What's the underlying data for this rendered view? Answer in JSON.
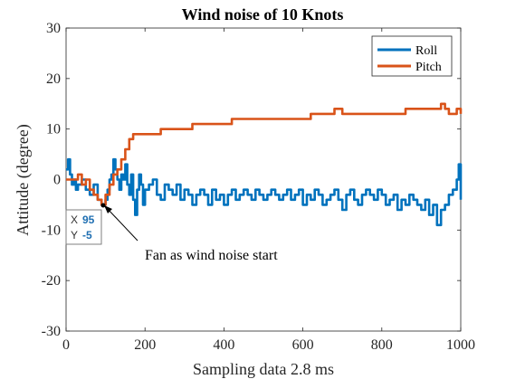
{
  "chart_data": {
    "type": "line",
    "title": "Wind noise of 10 Knots",
    "xlabel": "Sampling data 2.8 ms",
    "ylabel": "Attitude (degree)",
    "xlim": [
      0,
      1000
    ],
    "ylim": [
      -30,
      30
    ],
    "xticks": [
      0,
      200,
      400,
      600,
      800,
      1000
    ],
    "yticks": [
      -30,
      -20,
      -10,
      0,
      10,
      20,
      30
    ],
    "xtick_labels": [
      "0",
      "200",
      "400",
      "600",
      "800",
      "1000"
    ],
    "ytick_labels": [
      "-30",
      "-20",
      "-10",
      "0",
      "10",
      "20",
      "30"
    ],
    "grid": false,
    "legend": "top-right",
    "series": [
      {
        "name": "Roll",
        "color": "#0072BD",
        "x": [
          0,
          5,
          10,
          15,
          20,
          25,
          30,
          40,
          50,
          60,
          70,
          80,
          90,
          95,
          100,
          105,
          110,
          115,
          120,
          125,
          130,
          135,
          140,
          145,
          150,
          155,
          160,
          165,
          170,
          175,
          180,
          185,
          190,
          195,
          200,
          210,
          220,
          230,
          240,
          250,
          260,
          270,
          280,
          290,
          300,
          310,
          320,
          330,
          340,
          350,
          360,
          370,
          380,
          390,
          400,
          410,
          420,
          430,
          440,
          450,
          460,
          470,
          480,
          490,
          500,
          510,
          520,
          530,
          540,
          550,
          560,
          570,
          580,
          590,
          600,
          610,
          620,
          630,
          640,
          650,
          660,
          670,
          680,
          690,
          700,
          710,
          720,
          730,
          740,
          750,
          760,
          770,
          780,
          790,
          800,
          810,
          820,
          830,
          840,
          850,
          860,
          870,
          880,
          890,
          900,
          910,
          920,
          930,
          940,
          950,
          960,
          970,
          980,
          990,
          995,
          1000
        ],
        "y": [
          2,
          4,
          1,
          -1,
          0,
          -2,
          -1,
          0,
          -2,
          -3,
          -1,
          -4,
          -5,
          -5,
          -4,
          -2,
          0,
          1,
          4,
          2,
          0,
          -2,
          1,
          0,
          3,
          -1,
          -3,
          1,
          -4,
          -7,
          -2,
          1,
          -1,
          -5,
          -2,
          -1,
          0,
          -3,
          -4,
          -1,
          -2,
          -3,
          -1,
          -4,
          -2,
          -3,
          -5,
          -3,
          -2,
          -3,
          -5,
          -2,
          -4,
          -3,
          -5,
          -3,
          -2,
          -4,
          -3,
          -2,
          -3,
          -4,
          -2,
          -3,
          -4,
          -3,
          -2,
          -3,
          -4,
          -3,
          -2,
          -4,
          -3,
          -2,
          -5,
          -3,
          -4,
          -2,
          -3,
          -5,
          -4,
          -3,
          -2,
          -4,
          -6,
          -3,
          -2,
          -4,
          -5,
          -3,
          -2,
          -3,
          -4,
          -2,
          -3,
          -5,
          -4,
          -3,
          -6,
          -4,
          -5,
          -3,
          -4,
          -5,
          -6,
          -4,
          -7,
          -5,
          -9,
          -6,
          -5,
          -3,
          -2,
          0,
          3,
          -4
        ]
      },
      {
        "name": "Pitch",
        "color": "#D95319",
        "x": [
          0,
          10,
          20,
          30,
          40,
          50,
          60,
          70,
          80,
          90,
          95,
          100,
          110,
          120,
          130,
          140,
          150,
          160,
          170,
          180,
          190,
          200,
          220,
          240,
          260,
          280,
          300,
          320,
          340,
          360,
          380,
          400,
          420,
          440,
          460,
          480,
          500,
          520,
          540,
          560,
          580,
          600,
          620,
          640,
          660,
          680,
          700,
          720,
          740,
          760,
          780,
          800,
          820,
          840,
          860,
          880,
          900,
          920,
          940,
          950,
          960,
          970,
          980,
          990,
          1000
        ],
        "y": [
          0,
          0,
          0,
          1,
          -1,
          0,
          -2,
          -3,
          -4,
          -5,
          -5,
          -3,
          -1,
          1,
          2,
          4,
          6,
          8,
          9,
          9,
          9,
          9,
          9,
          10,
          10,
          10,
          10,
          11,
          11,
          11,
          11,
          11,
          12,
          12,
          12,
          12,
          12,
          12,
          12,
          12,
          12,
          12,
          13,
          13,
          13,
          14,
          13,
          13,
          13,
          13,
          13,
          13,
          13,
          13,
          14,
          14,
          14,
          14,
          14,
          15,
          14,
          13,
          13,
          14,
          13
        ]
      }
    ],
    "annotations": [
      {
        "text": "Fan as wind noise start",
        "x": 95,
        "y": -5
      }
    ],
    "datatip": {
      "x_label": "X",
      "x_value": "95",
      "y_label": "Y",
      "y_value": "-5"
    }
  }
}
